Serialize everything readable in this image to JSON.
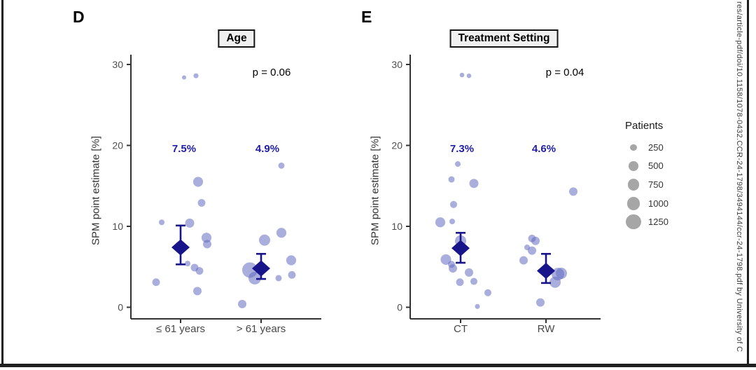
{
  "watermark_text": "res/article-pdf/doi/10.1158/1078-0432.CCR-24-1798/3494144/ccr-24-1798.pdf by University of C",
  "legend": {
    "title": "Patients",
    "entries": [
      {
        "label": "250",
        "n": 250
      },
      {
        "label": "500",
        "n": 500
      },
      {
        "label": "750",
        "n": 750
      },
      {
        "label": "1000",
        "n": 1000
      },
      {
        "label": "1250",
        "n": 1250
      }
    ]
  },
  "colors": {
    "bubble": "#636cc1",
    "mean_diamond": "#171589",
    "mean_label_blue": "#1f1daa",
    "axis": "#333333",
    "tick_text": "#4d4d4d",
    "legend_circle": "#a6a6a6",
    "title_box_bg": "#f0f0f0",
    "border": "#1c1c1c"
  },
  "chart_data": [
    {
      "type": "scatter",
      "panel_label": "D",
      "title": "Age",
      "p_value_label": "p = 0.06",
      "ylabel": "SPM point estimate [%]",
      "yticks": [
        0,
        10,
        20,
        30
      ],
      "ylim": [
        -2,
        31
      ],
      "categories": [
        "≤ 61 years",
        "> 61 years"
      ],
      "legend_title": "Patients",
      "groups": [
        {
          "category": "≤ 61 years",
          "mean": 7.4,
          "mean_label": "7.5%",
          "ci": [
            5.3,
            10.1
          ],
          "points": [
            {
              "y": 28.4,
              "n": 100,
              "dx": 5
            },
            {
              "y": 28.6,
              "n": 140,
              "dx": 22
            },
            {
              "y": 15.5,
              "n": 560,
              "dx": 25
            },
            {
              "y": 12.9,
              "n": 330,
              "dx": 30
            },
            {
              "y": 10.5,
              "n": 180,
              "dx": -27
            },
            {
              "y": 10.4,
              "n": 470,
              "dx": 13
            },
            {
              "y": 8.6,
              "n": 560,
              "dx": 37
            },
            {
              "y": 7.8,
              "n": 400,
              "dx": 38
            },
            {
              "y": 5.4,
              "n": 180,
              "dx": 10
            },
            {
              "y": 4.9,
              "n": 330,
              "dx": 20
            },
            {
              "y": 4.5,
              "n": 330,
              "dx": 27
            },
            {
              "y": 3.1,
              "n": 330,
              "dx": -35
            },
            {
              "y": 2.0,
              "n": 400,
              "dx": 24
            }
          ]
        },
        {
          "category": "> 61 years",
          "mean": 4.8,
          "mean_label": "4.9%",
          "ci": [
            3.5,
            6.6
          ],
          "points": [
            {
              "y": 17.5,
              "n": 225,
              "dx": 29
            },
            {
              "y": 9.2,
              "n": 560,
              "dx": 29
            },
            {
              "y": 8.3,
              "n": 710,
              "dx": 5
            },
            {
              "y": 5.8,
              "n": 560,
              "dx": 43
            },
            {
              "y": 4.6,
              "n": 1350,
              "dx": -16
            },
            {
              "y": 4.0,
              "n": 330,
              "dx": 44
            },
            {
              "y": 3.6,
              "n": 900,
              "dx": -9
            },
            {
              "y": 3.6,
              "n": 225,
              "dx": 25
            },
            {
              "y": 0.4,
              "n": 400,
              "dx": -27
            }
          ]
        }
      ]
    },
    {
      "type": "scatter",
      "panel_label": "E",
      "title": "Treatment Setting",
      "p_value_label": "p = 0.04",
      "ylabel": "SPM point estimate [%]",
      "yticks": [
        0,
        10,
        20,
        30
      ],
      "ylim": [
        -2,
        31
      ],
      "categories": [
        "CT",
        "RW"
      ],
      "legend_title": "Patients",
      "groups": [
        {
          "category": "CT",
          "mean": 7.3,
          "mean_label": "7.3%",
          "ci": [
            5.5,
            9.2
          ],
          "points": [
            {
              "y": 28.7,
              "n": 120,
              "dx": 2
            },
            {
              "y": 28.6,
              "n": 120,
              "dx": 12
            },
            {
              "y": 17.7,
              "n": 180,
              "dx": -4
            },
            {
              "y": 15.8,
              "n": 225,
              "dx": -13
            },
            {
              "y": 15.3,
              "n": 470,
              "dx": 19
            },
            {
              "y": 12.7,
              "n": 280,
              "dx": -10
            },
            {
              "y": 10.5,
              "n": 560,
              "dx": -29
            },
            {
              "y": 10.6,
              "n": 180,
              "dx": -12
            },
            {
              "y": 8.2,
              "n": 710,
              "dx": 0
            },
            {
              "y": 5.9,
              "n": 630,
              "dx": -21
            },
            {
              "y": 5.3,
              "n": 280,
              "dx": -13
            },
            {
              "y": 4.8,
              "n": 400,
              "dx": -11
            },
            {
              "y": 4.3,
              "n": 400,
              "dx": 12
            },
            {
              "y": 3.1,
              "n": 330,
              "dx": -1
            },
            {
              "y": 3.2,
              "n": 280,
              "dx": 19
            },
            {
              "y": 1.8,
              "n": 280,
              "dx": 39
            },
            {
              "y": 0.1,
              "n": 140,
              "dx": 24
            }
          ]
        },
        {
          "category": "RW",
          "mean": 4.5,
          "mean_label": "4.6%",
          "ci": [
            3.0,
            6.6
          ],
          "points": [
            {
              "y": 14.3,
              "n": 400,
              "dx": 39
            },
            {
              "y": 8.5,
              "n": 330,
              "dx": -20
            },
            {
              "y": 8.2,
              "n": 400,
              "dx": -15
            },
            {
              "y": 7.4,
              "n": 180,
              "dx": -27
            },
            {
              "y": 7.0,
              "n": 400,
              "dx": -20
            },
            {
              "y": 5.8,
              "n": 400,
              "dx": -32
            },
            {
              "y": 4.1,
              "n": 900,
              "dx": 17
            },
            {
              "y": 4.2,
              "n": 710,
              "dx": 22
            },
            {
              "y": 3.1,
              "n": 710,
              "dx": 13
            },
            {
              "y": 0.6,
              "n": 400,
              "dx": -8
            }
          ]
        }
      ]
    }
  ]
}
